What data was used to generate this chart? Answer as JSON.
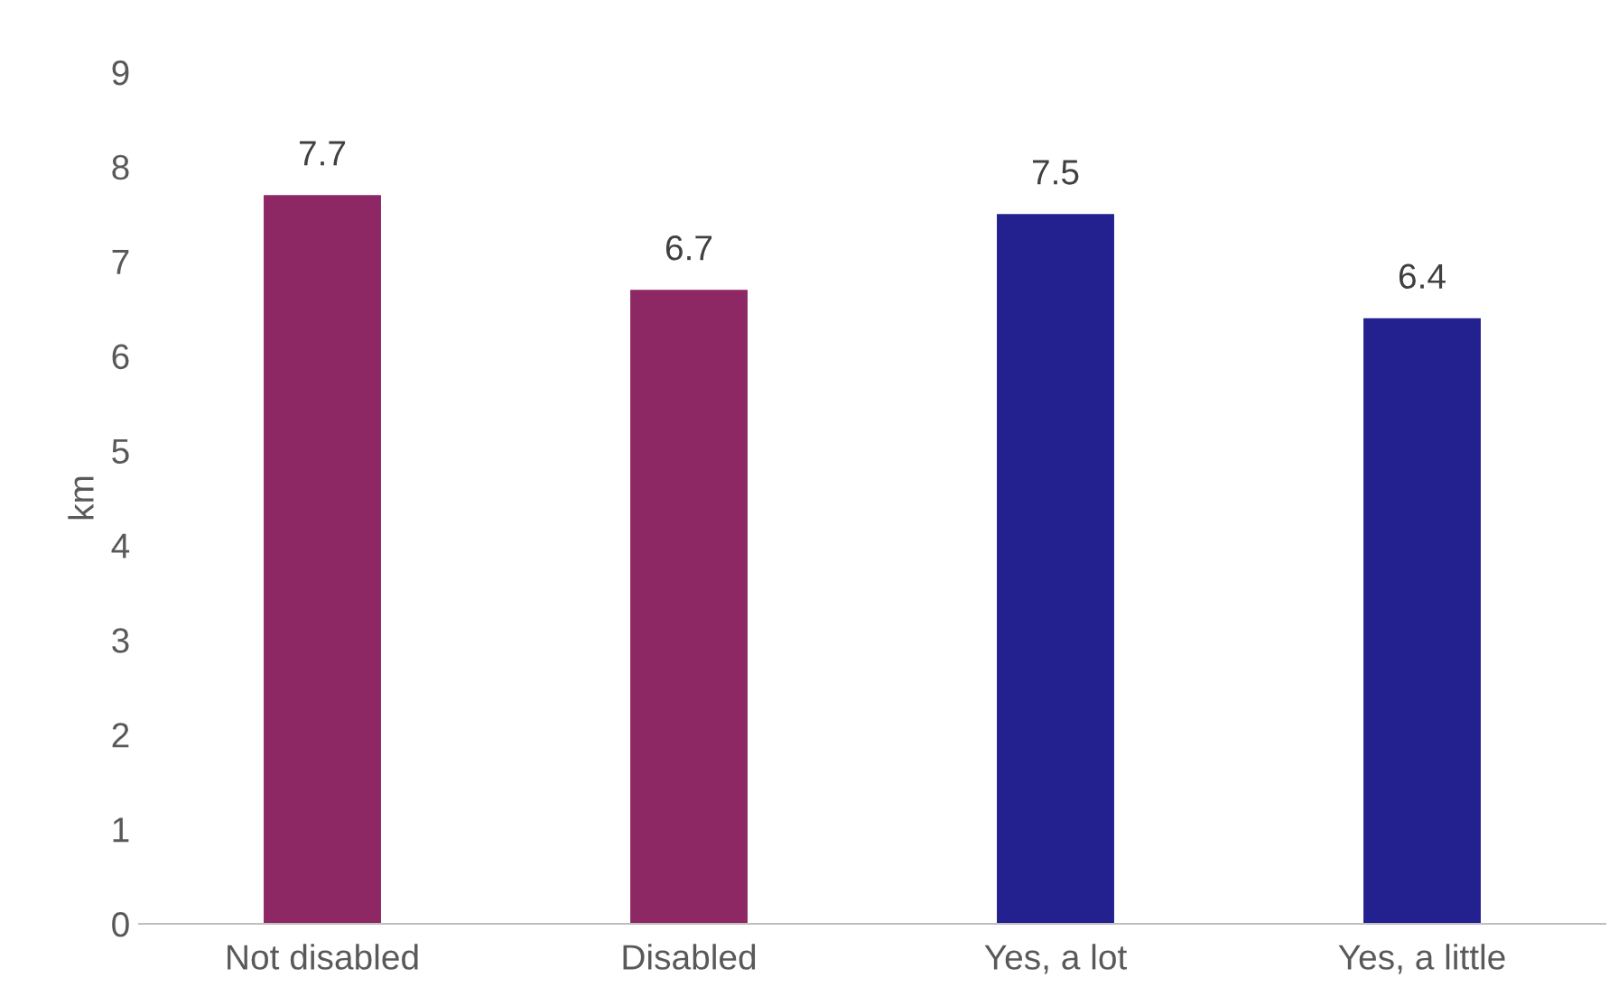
{
  "chart_data": {
    "type": "bar",
    "ylabel": "km",
    "categories": [
      "Not disabled",
      "Disabled",
      "Yes, a lot",
      "Yes, a little"
    ],
    "values": [
      7.7,
      6.7,
      7.5,
      6.4
    ],
    "colors": [
      "#8e2864",
      "#8e2864",
      "#22218f",
      "#22218f"
    ],
    "ylim": [
      0,
      9
    ],
    "yticks": [
      0,
      1,
      2,
      3,
      4,
      5,
      6,
      7,
      8,
      9
    ],
    "data_labels": true,
    "grid": false,
    "legend": false
  }
}
